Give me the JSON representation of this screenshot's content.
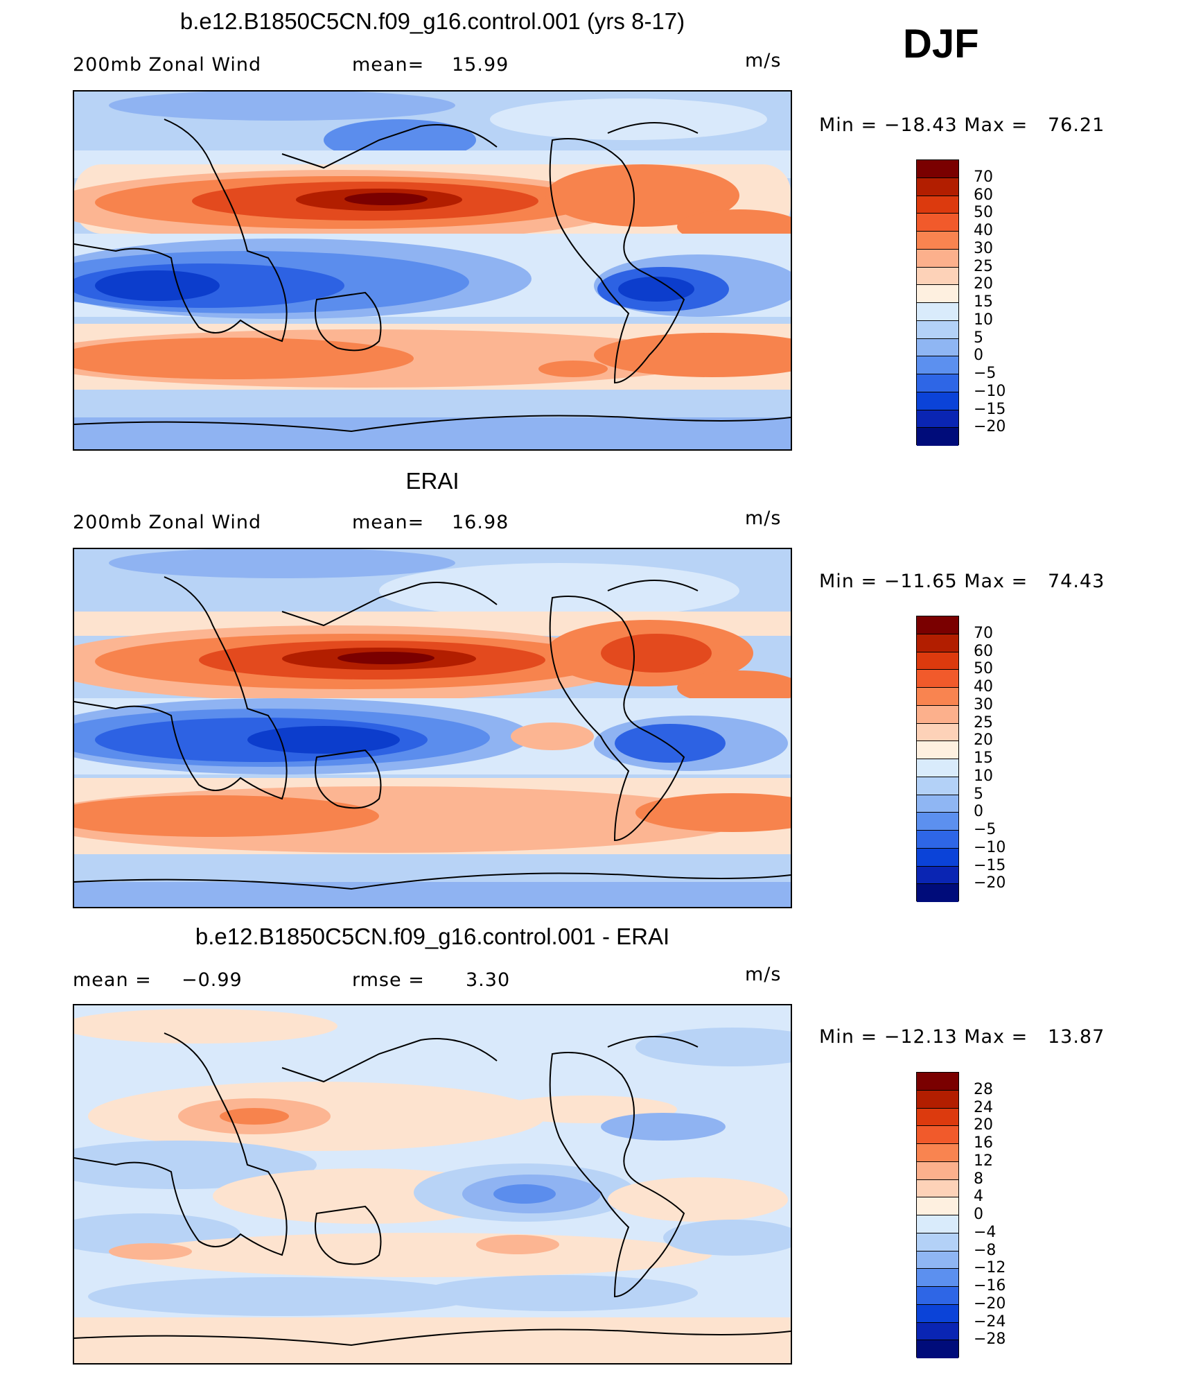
{
  "season": "DJF",
  "units": "m/s",
  "panels": [
    {
      "title": "b.e12.B1850C5CN.f09_g16.control.001 (yrs 8-17)",
      "left_label": "200mb Zonal Wind",
      "stat_label": "mean=",
      "stat_value": "15.99",
      "min_max": "Min = −18.43 Max =   76.21",
      "colorbar_labels": [
        "70",
        "60",
        "50",
        "40",
        "30",
        "25",
        "20",
        "15",
        "10",
        "5",
        "0",
        "−5",
        "−10",
        "−15",
        "−20"
      ],
      "colorbar_colors": [
        "#7a0000",
        "#b21e00",
        "#dc3a0e",
        "#f15a2b",
        "#f98450",
        "#fcb08c",
        "#fdd2b8",
        "#fef0e0",
        "#d9ebfb",
        "#b3d1f7",
        "#8fb6f3",
        "#5c90ef",
        "#2e66e6",
        "#0b43d8",
        "#0a25b3",
        "#000c7a"
      ]
    },
    {
      "title": "ERAI",
      "left_label": "200mb Zonal Wind",
      "stat_label": "mean=",
      "stat_value": "16.98",
      "min_max": "Min = −11.65 Max =   74.43",
      "colorbar_labels": [
        "70",
        "60",
        "50",
        "40",
        "30",
        "25",
        "20",
        "15",
        "10",
        "5",
        "0",
        "−5",
        "−10",
        "−15",
        "−20"
      ],
      "colorbar_colors": [
        "#7a0000",
        "#b21e00",
        "#dc3a0e",
        "#f15a2b",
        "#f98450",
        "#fcb08c",
        "#fdd2b8",
        "#fef0e0",
        "#d9ebfb",
        "#b3d1f7",
        "#8fb6f3",
        "#5c90ef",
        "#2e66e6",
        "#0b43d8",
        "#0a25b3",
        "#000c7a"
      ]
    },
    {
      "title": "b.e12.B1850C5CN.f09_g16.control.001 - ERAI",
      "left_label": "mean =",
      "left_value": "−0.99",
      "stat_label": "rmse =",
      "stat_value": "3.30",
      "min_max": "Min = −12.13 Max =   13.87",
      "colorbar_labels": [
        "28",
        "24",
        "20",
        "16",
        "12",
        "8",
        "4",
        "0",
        "−4",
        "−8",
        "−12",
        "−16",
        "−20",
        "−24",
        "−28"
      ],
      "colorbar_colors": [
        "#7a0000",
        "#b21e00",
        "#dc3a0e",
        "#f15a2b",
        "#f98450",
        "#fcb08c",
        "#fdd2b8",
        "#fef0e0",
        "#d9ebfb",
        "#b3d1f7",
        "#8fb6f3",
        "#5c90ef",
        "#2e66e6",
        "#0b43d8",
        "#0a25b3",
        "#000c7a"
      ]
    }
  ],
  "colors": {
    "deep_red": "#a11a00",
    "red": "#e34a1e",
    "orange": "#f7834d",
    "salmon": "#fcb592",
    "peach": "#fde3cf",
    "pale_blue": "#d9e9fb",
    "light_blue": "#b8d3f6",
    "blue": "#8fb3f2",
    "mid_blue": "#5b8ded",
    "strong_blue": "#2d62e3",
    "deep_blue": "#0c3dcc"
  }
}
